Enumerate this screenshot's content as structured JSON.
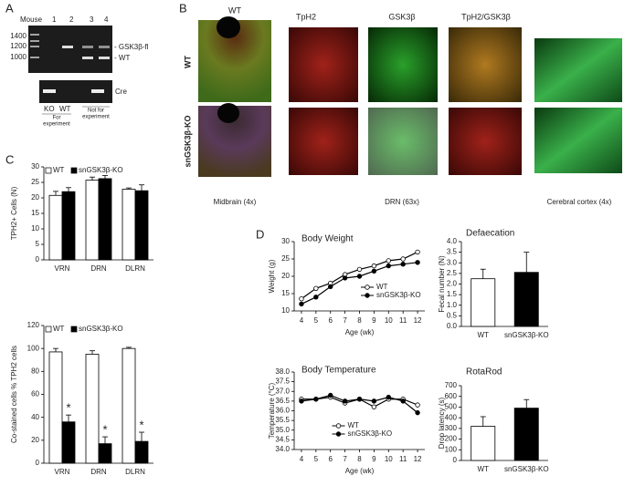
{
  "panels": [
    "A",
    "B",
    "C",
    "D"
  ],
  "gel": {
    "lane_header": "Mouse",
    "lanes": [
      "1",
      "2",
      "3",
      "4"
    ],
    "markers": [
      "1400",
      "1200",
      "1000"
    ],
    "bands": [
      "- GSK3β-fl",
      "- WT"
    ],
    "cre": "Cre",
    "genotypes": [
      "KO",
      "WT"
    ],
    "notes": [
      [
        "For",
        "experiment"
      ],
      [
        "Not for",
        "experiment"
      ]
    ]
  },
  "images": {
    "columns": [
      "WT",
      "TpH2",
      "GSK3β",
      "TpH2/GSK3β"
    ],
    "rows": [
      "WT",
      "snGSK3β-KO"
    ],
    "captions": [
      "Midbrain (4x)",
      "DRN (63x)",
      "Cerebral cortex (4x)"
    ]
  },
  "chart_data": [
    {
      "type": "bar",
      "y_label": "TPH2+ Cells (N)",
      "categories": [
        "VRN",
        "DRN",
        "DLRN"
      ],
      "ylim": [
        0,
        30
      ],
      "yticks": [
        0,
        5,
        10,
        15,
        20,
        25,
        30
      ],
      "legend": "top-left",
      "series": [
        {
          "name": "WT",
          "color": "#ffffff",
          "values": [
            20.8,
            25.7,
            22.8
          ],
          "errors": [
            1.3,
            1.0,
            0.4
          ]
        },
        {
          "name": "snGSK3β-KO",
          "color": "#000000",
          "values": [
            22,
            26.2,
            22.3
          ],
          "errors": [
            1.3,
            1.0,
            1.9
          ]
        }
      ]
    },
    {
      "type": "bar",
      "y_label": "Co-stained cells % TPH2 cells",
      "categories": [
        "VRN",
        "DRN",
        "DLRN"
      ],
      "ylim": [
        0,
        120
      ],
      "yticks": [
        0,
        20,
        40,
        60,
        80,
        100,
        120
      ],
      "legend": "top-left",
      "series": [
        {
          "name": "WT",
          "color": "#ffffff",
          "values": [
            97,
            95,
            100
          ],
          "errors": [
            3,
            3,
            1
          ]
        },
        {
          "name": "snGSK3β-KO",
          "color": "#000000",
          "values": [
            36,
            17,
            19
          ],
          "errors": [
            6,
            6,
            8
          ],
          "labels": [
            "*",
            "*",
            "*"
          ]
        }
      ]
    },
    {
      "type": "line",
      "title": "Body Weight",
      "y_label": "Weight (g)",
      "x_label": "Age (wk)",
      "x": [
        4,
        5,
        6,
        7,
        8,
        9,
        10,
        11,
        12
      ],
      "xlim": [
        3.5,
        12.5
      ],
      "xticks": [
        4,
        5,
        6,
        7,
        8,
        9,
        10,
        11,
        12
      ],
      "ylim": [
        10,
        30
      ],
      "yticks": [
        10,
        15,
        20,
        25,
        30
      ],
      "legend": "bottom-right",
      "series": [
        {
          "name": "WT",
          "color": "#ffffff",
          "values": [
            13.5,
            16.5,
            18,
            20.5,
            22,
            23,
            24.5,
            25,
            27
          ]
        },
        {
          "name": "snGSK3β-KO",
          "color": "#000000",
          "values": [
            12,
            14,
            17,
            19.5,
            20,
            21.5,
            23,
            23.5,
            24
          ]
        }
      ]
    },
    {
      "type": "bar",
      "title": "Defaecation",
      "y_label": "Fecal number (N)",
      "categories": [
        "WT",
        "snGSK3β-KO"
      ],
      "values": [
        2.25,
        2.55
      ],
      "errors": [
        0.45,
        0.95
      ],
      "colors": [
        "#ffffff",
        "#000000"
      ],
      "ylim": [
        0,
        4
      ],
      "yticks": [
        {
          "value": 0,
          "label": "0.0"
        },
        {
          "value": 0.5,
          "label": "0.5"
        },
        {
          "value": 1,
          "label": "1.0"
        },
        {
          "value": 1.5,
          "label": "1.5"
        },
        {
          "value": 2,
          "label": "2.0"
        },
        {
          "value": 2.5,
          "label": "2.5"
        },
        {
          "value": 3,
          "label": "3.0"
        },
        {
          "value": 3.5,
          "label": "3.5"
        },
        {
          "value": 4,
          "label": "4.0"
        }
      ]
    },
    {
      "type": "line",
      "title": "Body Temperature",
      "y_label": "Temperature (°C)",
      "x_label": "Age (wk)",
      "x": [
        4,
        5,
        6,
        7,
        8,
        9,
        10,
        11,
        12
      ],
      "xlim": [
        3.5,
        12.5
      ],
      "xticks": [
        4,
        5,
        6,
        7,
        8,
        9,
        10,
        11,
        12
      ],
      "ylim": [
        34,
        38
      ],
      "yticks": [
        {
          "value": 34,
          "label": "34.0"
        },
        {
          "value": 34.5,
          "label": "34.5"
        },
        {
          "value": 35,
          "label": "35.0"
        },
        {
          "value": 35.5,
          "label": "35.5"
        },
        {
          "value": 36,
          "label": "36.0"
        },
        {
          "value": 36.5,
          "label": "36.5"
        },
        {
          "value": 37,
          "label": "37.0"
        },
        {
          "value": 37.5,
          "label": "37.5"
        },
        {
          "value": 38,
          "label": "38.0"
        }
      ],
      "legend": "bottom-center",
      "series": [
        {
          "name": "WT",
          "color": "#ffffff",
          "values": [
            36.6,
            36.6,
            36.7,
            36.4,
            36.6,
            36.2,
            36.6,
            36.6,
            36.3
          ]
        },
        {
          "name": "snGSK3β-KO",
          "color": "#000000",
          "values": [
            36.5,
            36.6,
            36.8,
            36.5,
            36.6,
            36.5,
            36.7,
            36.5,
            35.9
          ]
        }
      ]
    },
    {
      "type": "bar",
      "title": "RotaRod",
      "y_label": "Drop latency (s)",
      "categories": [
        "WT",
        "snGSK3β-KO"
      ],
      "values": [
        320,
        490
      ],
      "errors": [
        90,
        80
      ],
      "colors": [
        "#ffffff",
        "#000000"
      ],
      "ylim": [
        0,
        700
      ],
      "yticks": [
        0,
        100,
        200,
        300,
        400,
        500,
        600,
        700
      ]
    }
  ]
}
